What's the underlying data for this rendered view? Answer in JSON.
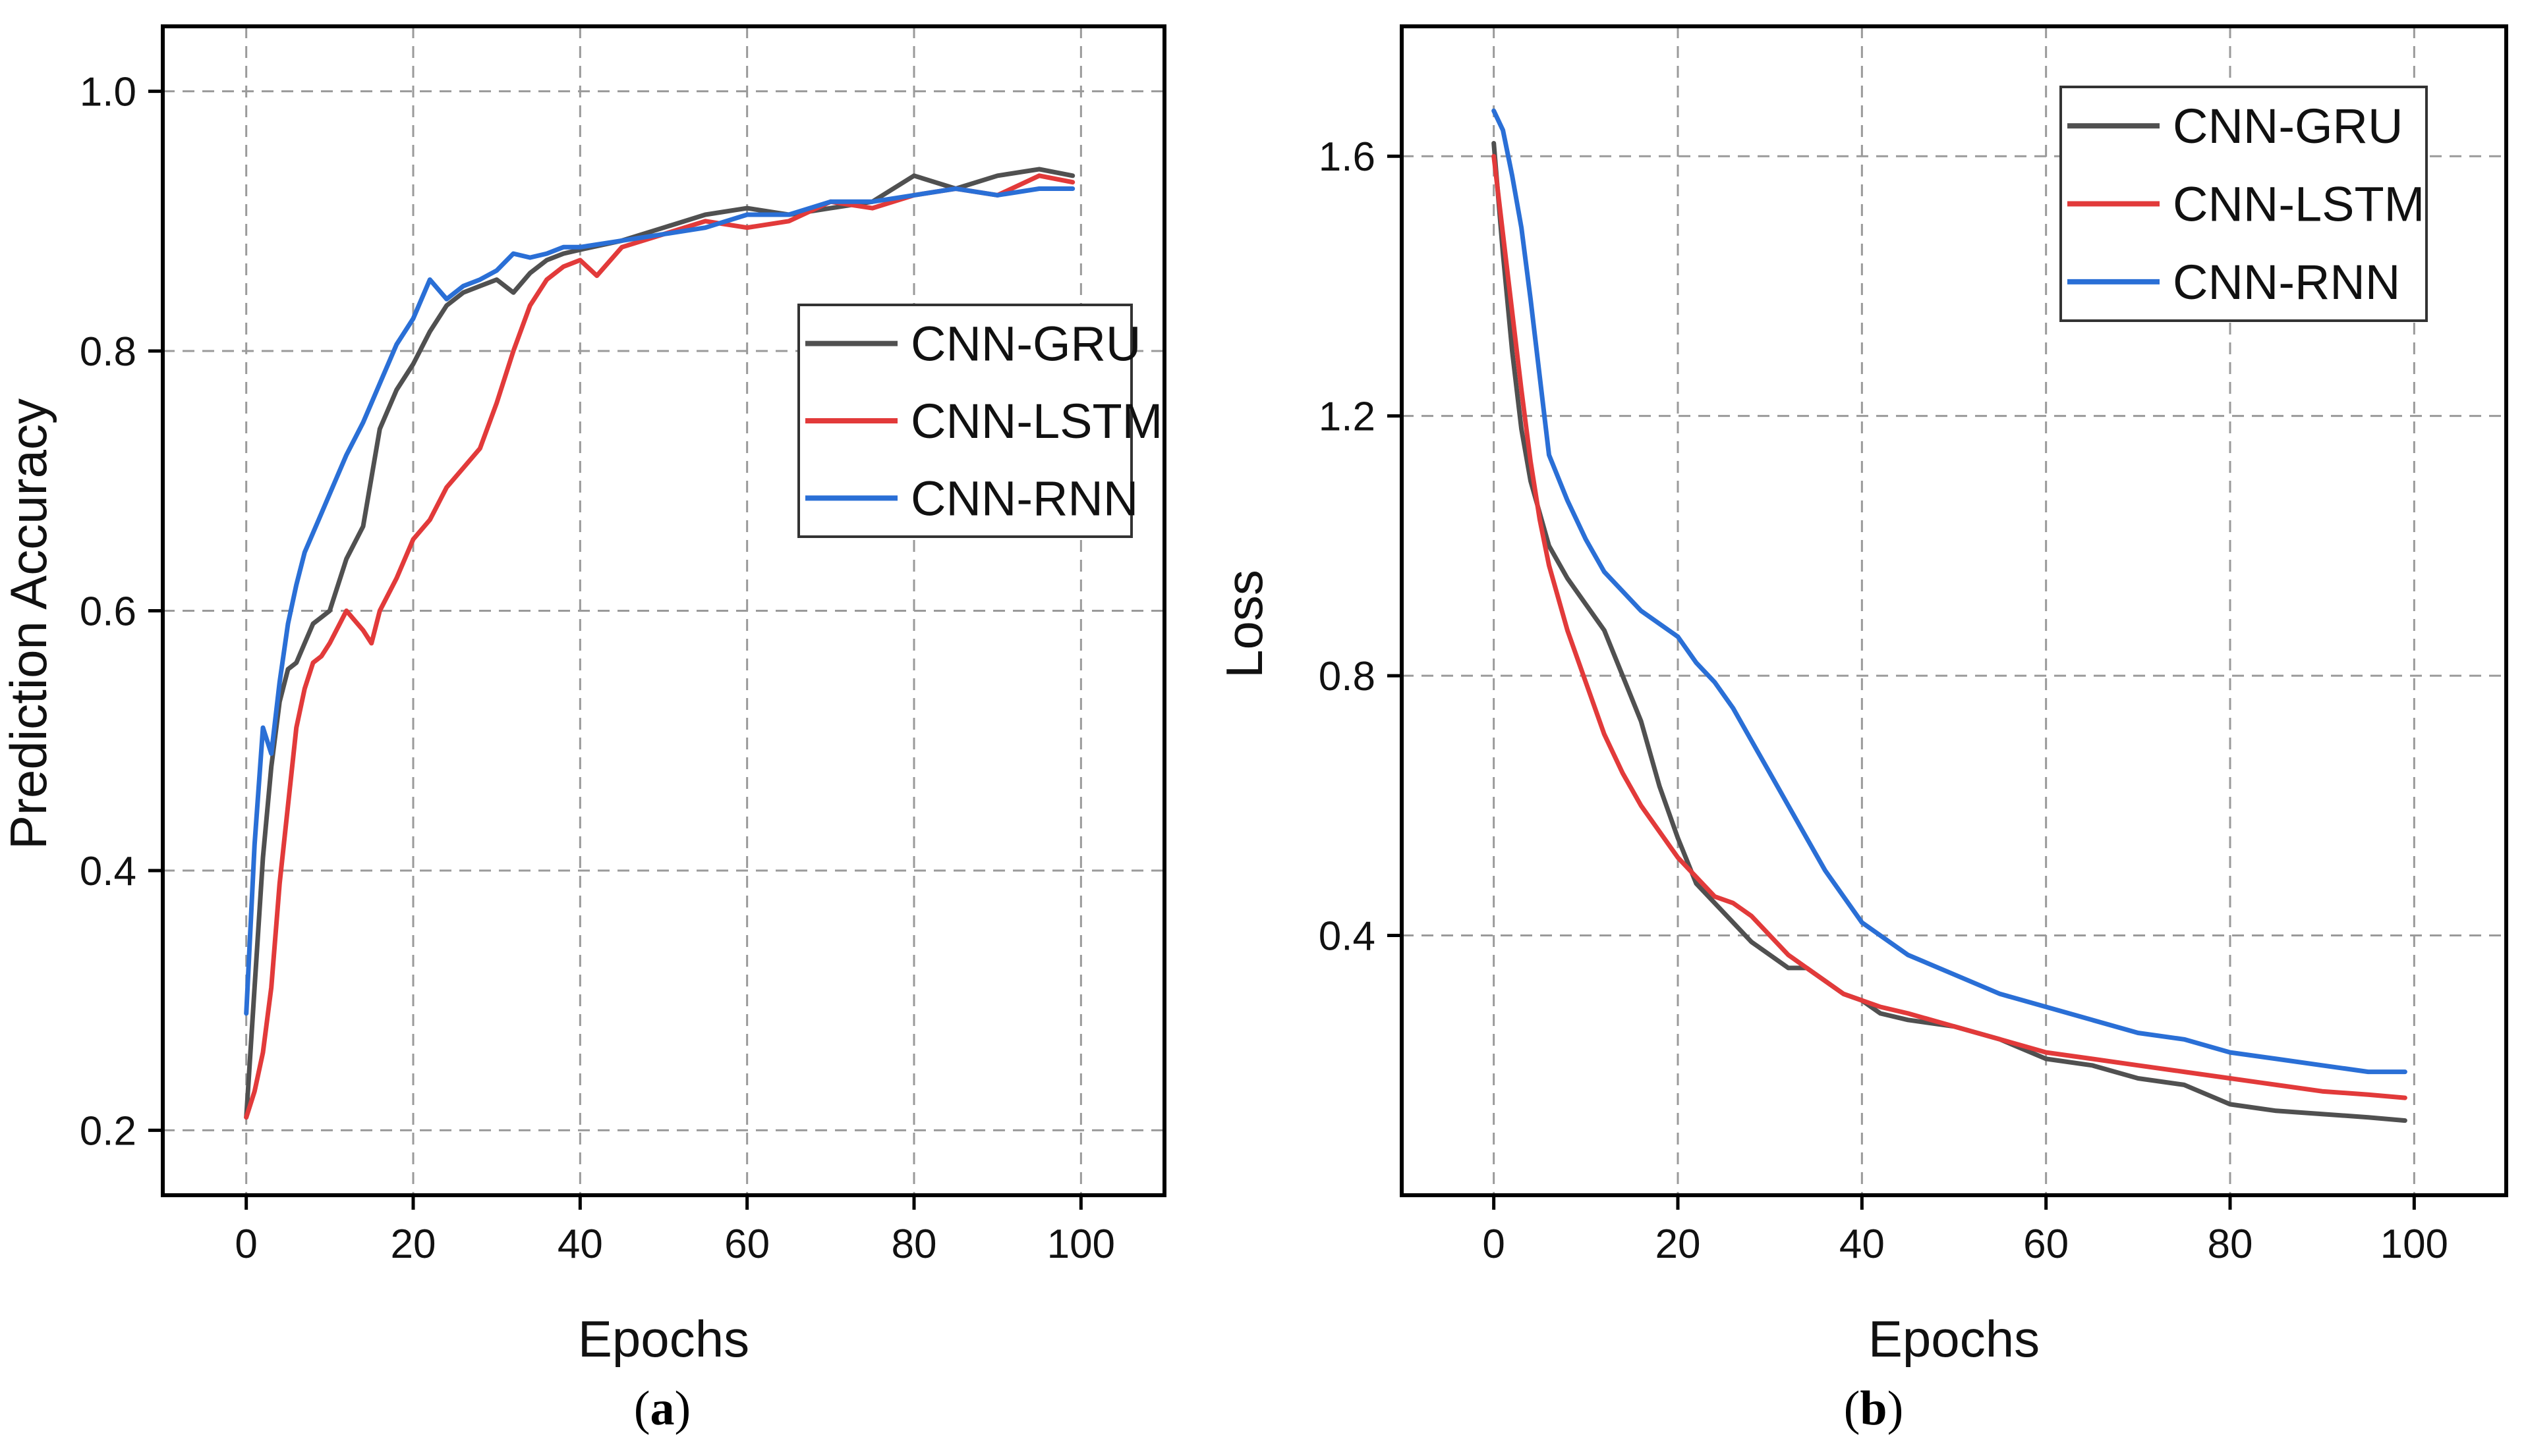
{
  "colors": {
    "gru": "#505050",
    "lstm": "#e23a3a",
    "rnn": "#2a6fd6",
    "grid": "#9a9a9a",
    "axis": "#000000"
  },
  "chart_data": [
    {
      "type": "line",
      "panel": "(a)",
      "panel_letter": "a",
      "xlabel": "Epochs",
      "ylabel": "Prediction Accuracy",
      "xlim": [
        -10,
        110
      ],
      "ylim": [
        0.15,
        1.05
      ],
      "xticks": [
        0,
        20,
        40,
        60,
        80,
        100
      ],
      "xtick_labels": [
        "0",
        "20",
        "40",
        "60",
        "80",
        "100"
      ],
      "yticks": [
        0.2,
        0.4,
        0.6,
        0.8,
        1.0
      ],
      "ytick_labels": [
        "0.2",
        "0.4",
        "0.6",
        "0.8",
        "1.0"
      ],
      "grid": true,
      "legend_position": "right",
      "series": [
        {
          "name": "CNN-GRU",
          "color_key": "gru",
          "x": [
            0,
            1,
            2,
            3,
            4,
            5,
            6,
            7,
            8,
            9,
            10,
            12,
            14,
            16,
            18,
            20,
            22,
            24,
            26,
            28,
            30,
            32,
            34,
            36,
            38,
            40,
            45,
            50,
            55,
            60,
            65,
            70,
            75,
            80,
            85,
            90,
            95,
            99
          ],
          "values": [
            0.21,
            0.31,
            0.41,
            0.48,
            0.53,
            0.555,
            0.56,
            0.575,
            0.59,
            0.595,
            0.6,
            0.64,
            0.665,
            0.74,
            0.77,
            0.79,
            0.815,
            0.835,
            0.845,
            0.85,
            0.855,
            0.845,
            0.86,
            0.87,
            0.875,
            0.878,
            0.885,
            0.895,
            0.905,
            0.91,
            0.905,
            0.91,
            0.915,
            0.935,
            0.925,
            0.935,
            0.94,
            0.935
          ]
        },
        {
          "name": "CNN-LSTM",
          "color_key": "lstm",
          "x": [
            0,
            1,
            2,
            3,
            4,
            5,
            6,
            7,
            8,
            9,
            10,
            12,
            14,
            15,
            16,
            18,
            20,
            22,
            24,
            26,
            28,
            30,
            32,
            34,
            36,
            38,
            40,
            42,
            45,
            50,
            55,
            60,
            65,
            70,
            75,
            80,
            85,
            90,
            95,
            99
          ],
          "values": [
            0.21,
            0.23,
            0.26,
            0.31,
            0.39,
            0.45,
            0.51,
            0.54,
            0.56,
            0.565,
            0.575,
            0.6,
            0.585,
            0.575,
            0.6,
            0.625,
            0.655,
            0.67,
            0.695,
            0.71,
            0.725,
            0.76,
            0.8,
            0.835,
            0.855,
            0.865,
            0.87,
            0.858,
            0.88,
            0.89,
            0.9,
            0.895,
            0.9,
            0.915,
            0.91,
            0.92,
            0.925,
            0.92,
            0.935,
            0.93
          ]
        },
        {
          "name": "CNN-RNN",
          "color_key": "rnn",
          "x": [
            0,
            1,
            2,
            3,
            4,
            5,
            6,
            7,
            8,
            9,
            10,
            12,
            14,
            16,
            18,
            20,
            22,
            24,
            26,
            28,
            30,
            32,
            34,
            36,
            38,
            40,
            45,
            50,
            55,
            60,
            65,
            70,
            75,
            80,
            85,
            90,
            95,
            99
          ],
          "values": [
            0.29,
            0.42,
            0.51,
            0.49,
            0.545,
            0.59,
            0.62,
            0.645,
            0.66,
            0.675,
            0.69,
            0.72,
            0.745,
            0.775,
            0.805,
            0.825,
            0.855,
            0.84,
            0.85,
            0.855,
            0.862,
            0.875,
            0.872,
            0.875,
            0.88,
            0.88,
            0.885,
            0.89,
            0.895,
            0.905,
            0.905,
            0.915,
            0.915,
            0.92,
            0.925,
            0.92,
            0.925,
            0.925
          ]
        }
      ]
    },
    {
      "type": "line",
      "panel": "(b)",
      "panel_letter": "b",
      "xlabel": "Epochs",
      "ylabel": "Loss",
      "xlim": [
        -10,
        110
      ],
      "ylim": [
        0.0,
        1.8
      ],
      "xticks": [
        0,
        20,
        40,
        60,
        80,
        100
      ],
      "xtick_labels": [
        "0",
        "20",
        "40",
        "60",
        "80",
        "100"
      ],
      "yticks": [
        0.4,
        0.8,
        1.2,
        1.6
      ],
      "ytick_labels": [
        "0.4",
        "0.8",
        "1.2",
        "1.6"
      ],
      "grid": true,
      "legend_position": "top-right",
      "series": [
        {
          "name": "CNN-GRU",
          "color_key": "gru",
          "x": [
            0,
            1,
            2,
            3,
            4,
            5,
            6,
            8,
            10,
            12,
            14,
            16,
            18,
            20,
            22,
            24,
            26,
            28,
            30,
            32,
            34,
            36,
            38,
            40,
            42,
            45,
            50,
            55,
            60,
            65,
            70,
            75,
            80,
            85,
            90,
            95,
            99
          ],
          "values": [
            1.62,
            1.45,
            1.3,
            1.18,
            1.1,
            1.05,
            1.0,
            0.95,
            0.91,
            0.87,
            0.8,
            0.73,
            0.63,
            0.55,
            0.48,
            0.45,
            0.42,
            0.39,
            0.37,
            0.35,
            0.35,
            0.33,
            0.31,
            0.3,
            0.28,
            0.27,
            0.26,
            0.24,
            0.21,
            0.2,
            0.18,
            0.17,
            0.14,
            0.13,
            0.125,
            0.12,
            0.115
          ]
        },
        {
          "name": "CNN-LSTM",
          "color_key": "lstm",
          "x": [
            0,
            1,
            2,
            3,
            4,
            5,
            6,
            8,
            10,
            12,
            14,
            16,
            18,
            20,
            22,
            24,
            26,
            28,
            30,
            32,
            34,
            36,
            38,
            40,
            42,
            45,
            50,
            55,
            60,
            65,
            70,
            75,
            80,
            85,
            90,
            95,
            99
          ],
          "values": [
            1.6,
            1.48,
            1.36,
            1.24,
            1.13,
            1.04,
            0.97,
            0.87,
            0.79,
            0.71,
            0.65,
            0.6,
            0.56,
            0.52,
            0.49,
            0.46,
            0.45,
            0.43,
            0.4,
            0.37,
            0.35,
            0.33,
            0.31,
            0.3,
            0.29,
            0.28,
            0.26,
            0.24,
            0.22,
            0.21,
            0.2,
            0.19,
            0.18,
            0.17,
            0.16,
            0.155,
            0.15
          ]
        },
        {
          "name": "CNN-RNN",
          "color_key": "rnn",
          "x": [
            0,
            1,
            2,
            3,
            4,
            5,
            6,
            8,
            10,
            12,
            14,
            16,
            18,
            20,
            22,
            24,
            26,
            28,
            30,
            32,
            34,
            36,
            38,
            40,
            42,
            45,
            50,
            55,
            60,
            65,
            70,
            75,
            80,
            85,
            90,
            95,
            99
          ],
          "values": [
            1.67,
            1.64,
            1.57,
            1.49,
            1.38,
            1.26,
            1.14,
            1.07,
            1.01,
            0.96,
            0.93,
            0.9,
            0.88,
            0.86,
            0.82,
            0.79,
            0.75,
            0.7,
            0.65,
            0.6,
            0.55,
            0.5,
            0.46,
            0.42,
            0.4,
            0.37,
            0.34,
            0.31,
            0.29,
            0.27,
            0.25,
            0.24,
            0.22,
            0.21,
            0.2,
            0.19,
            0.19
          ]
        }
      ]
    }
  ]
}
